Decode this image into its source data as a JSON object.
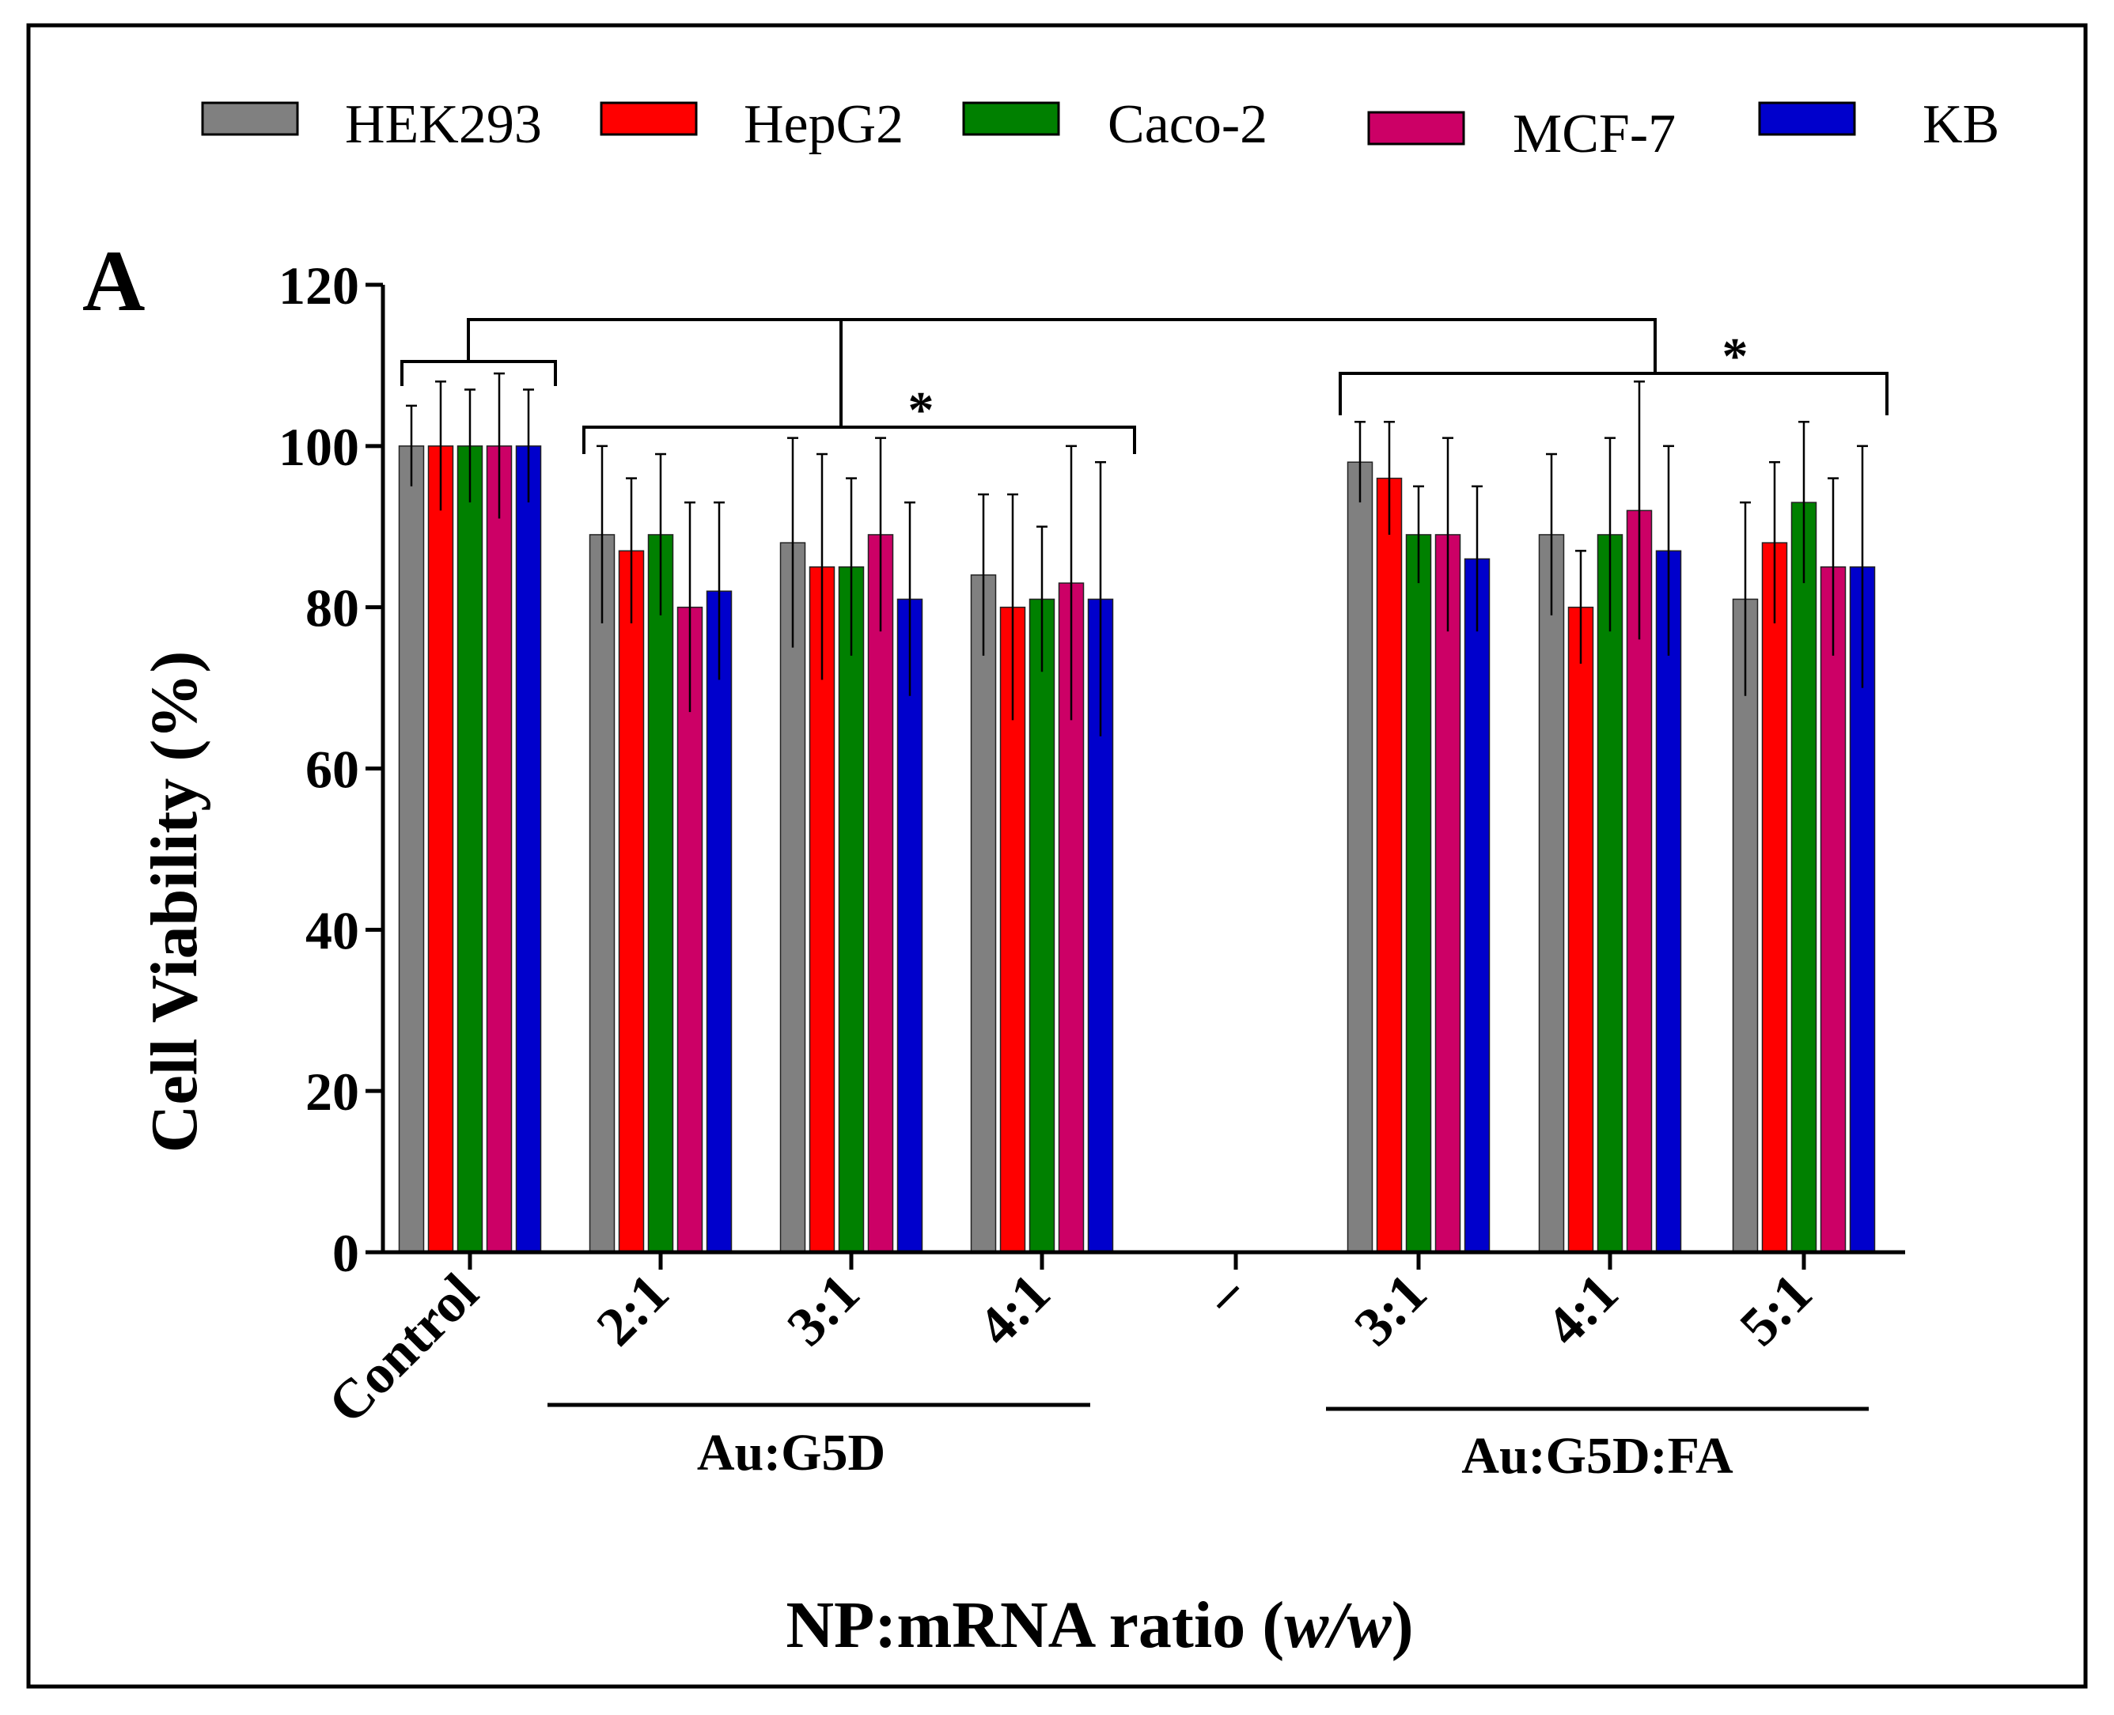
{
  "chart_data": {
    "type": "bar",
    "panel_label": "A",
    "title": "",
    "xlabel": "NP:mRNA ratio (w/w)",
    "xlabel_main": "NP:mRNA ratio (",
    "xlabel_italic": "w/w",
    "xlabel_close": ")",
    "ylabel": "Cell Viability (%)",
    "ylim": [
      0,
      120
    ],
    "yticks": [
      "0",
      "20",
      "40",
      "60",
      "80",
      "100",
      "120"
    ],
    "grid": false,
    "legend_position": "top",
    "categories": [
      "Control",
      "2:1",
      "3:1",
      "4:1",
      "–",
      "3:1",
      "4:1",
      "5:1"
    ],
    "series": [
      {
        "name": "HEK293",
        "color": "#808080",
        "values": [
          100,
          89,
          88,
          84,
          null,
          98,
          89,
          81
        ],
        "errors": [
          5,
          11,
          13,
          10,
          null,
          5,
          10,
          12
        ]
      },
      {
        "name": "HepG2",
        "color": "#ff0000",
        "values": [
          100,
          87,
          85,
          80,
          null,
          96,
          80,
          88
        ],
        "errors": [
          8,
          9,
          14,
          14,
          null,
          7,
          7,
          10
        ]
      },
      {
        "name": "Caco-2",
        "color": "#008000",
        "values": [
          100,
          89,
          85,
          81,
          null,
          89,
          89,
          93
        ],
        "errors": [
          7,
          10,
          11,
          9,
          null,
          6,
          12,
          10
        ]
      },
      {
        "name": "MCF-7",
        "color": "#cc0066",
        "values": [
          100,
          80,
          89,
          83,
          null,
          89,
          92,
          85
        ],
        "errors": [
          9,
          13,
          12,
          17,
          null,
          12,
          16,
          11
        ]
      },
      {
        "name": "KB",
        "color": "#0000cc",
        "values": [
          100,
          82,
          81,
          81,
          null,
          86,
          87,
          85
        ],
        "errors": [
          7,
          11,
          12,
          17,
          null,
          9,
          13,
          15
        ]
      }
    ],
    "groups": [
      {
        "label": "Au:G5D"
      },
      {
        "label": "Au:G5D:FA"
      }
    ],
    "significance": [
      {
        "label": "*"
      },
      {
        "label": "*"
      }
    ]
  }
}
